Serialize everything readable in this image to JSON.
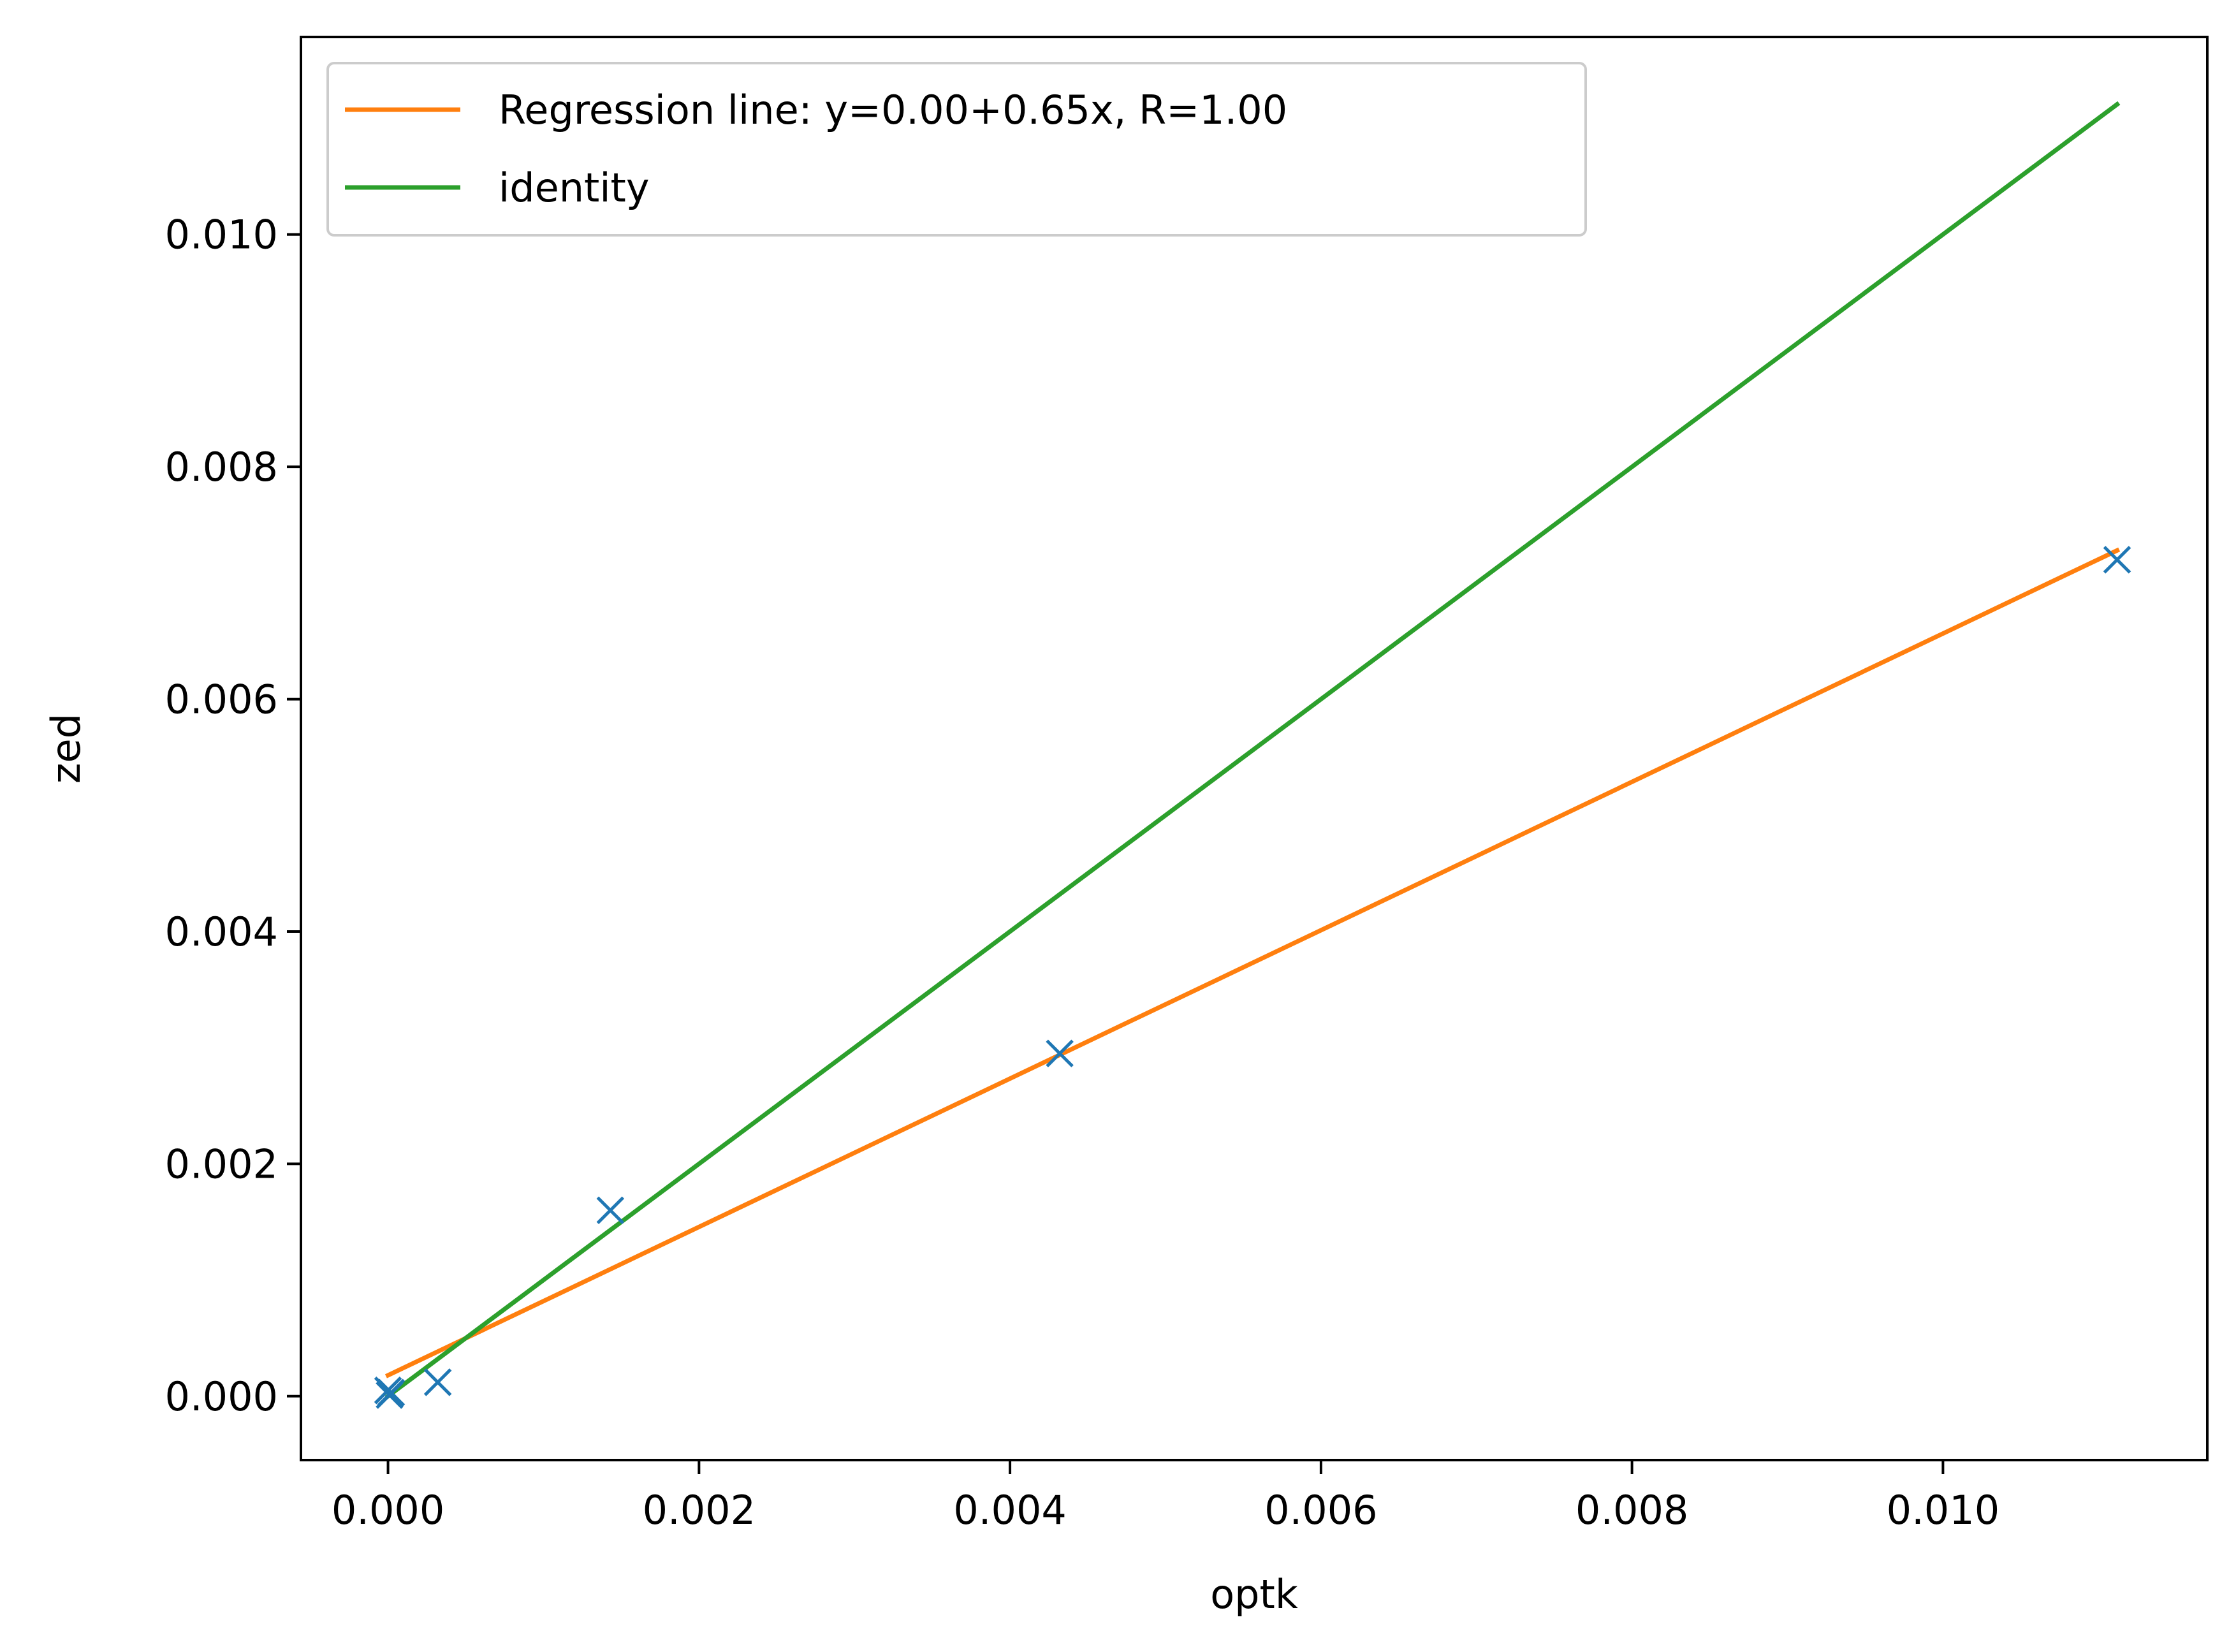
{
  "chart_data": {
    "type": "scatter",
    "title": "",
    "xlabel": "optk",
    "ylabel": "zed",
    "xlim": [
      -0.00056,
      0.0117
    ],
    "ylim": [
      -0.00055,
      0.0117
    ],
    "x_ticks": [
      0.0,
      0.002,
      0.004,
      0.006,
      0.008,
      0.01
    ],
    "x_tick_labels": [
      "0.000",
      "0.002",
      "0.004",
      "0.006",
      "0.008",
      "0.010"
    ],
    "y_ticks": [
      0.0,
      0.002,
      0.004,
      0.006,
      0.008,
      0.01
    ],
    "y_tick_labels": [
      "0.000",
      "0.002",
      "0.004",
      "0.006",
      "0.008",
      "0.010"
    ],
    "grid": false,
    "legend_position": "top-left",
    "series": [
      {
        "name": "",
        "kind": "scatter",
        "marker": "x",
        "color": "#1f77b4",
        "points": [
          [
            0.0,
            5e-05
          ],
          [
            1e-05,
            1e-05
          ],
          [
            2e-05,
            3e-05
          ],
          [
            0.00032,
            0.00012
          ],
          [
            0.00143,
            0.0016
          ],
          [
            0.00432,
            0.00295
          ],
          [
            0.01112,
            0.0072
          ]
        ]
      },
      {
        "name": "Regression line: y=0.00+0.65x, R=1.00",
        "kind": "line",
        "color": "#ff7f0e",
        "points": [
          [
            0.0,
            0.00018
          ],
          [
            0.01112,
            0.00728
          ]
        ]
      },
      {
        "name": "identity",
        "kind": "line",
        "color": "#2ca02c",
        "points": [
          [
            0.0,
            0.0
          ],
          [
            0.01112,
            0.01112
          ]
        ]
      }
    ]
  }
}
